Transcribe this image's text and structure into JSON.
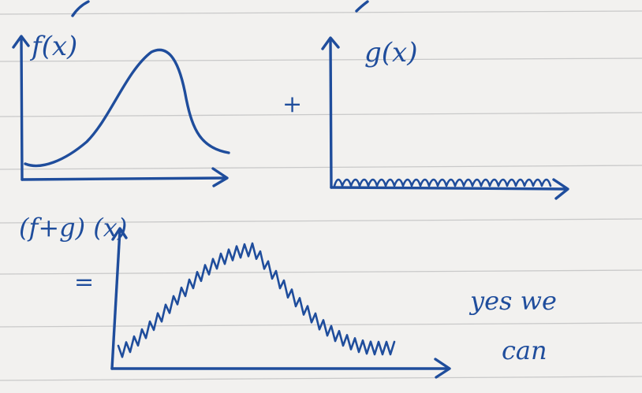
{
  "labels": {
    "f": "f(x)",
    "g": "g(x)",
    "sum": "(f+g) (x)",
    "plus": "+",
    "equals": "=",
    "note_line1": "yes we",
    "note_line2": "can"
  },
  "colors": {
    "ink": "#1f4d9c",
    "paper": "#f2f1ef",
    "rule_lines": "#c9c9c9"
  }
}
